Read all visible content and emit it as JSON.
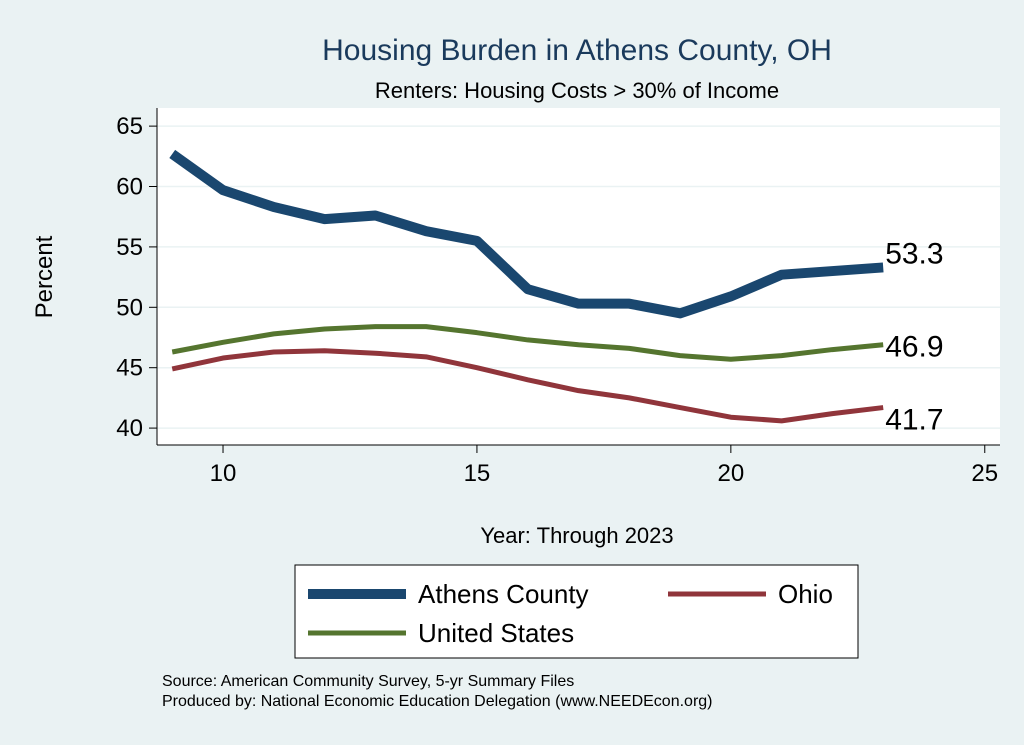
{
  "chart_data": {
    "type": "line",
    "title": "Housing Burden in Athens County, OH",
    "subtitle": "Renters: Housing Costs > 30% of Income",
    "xlabel": "Year: Through 2023",
    "ylabel": "Percent",
    "x": [
      9,
      10,
      11,
      12,
      13,
      14,
      15,
      16,
      17,
      18,
      19,
      20,
      21,
      22,
      23
    ],
    "xticks": [
      10,
      15,
      20,
      25
    ],
    "yticks": [
      40,
      45,
      50,
      55,
      60,
      65
    ],
    "xlim": [
      8.7,
      25.3
    ],
    "ylim": [
      38.6,
      66.5
    ],
    "grid": "horizontal",
    "legend_position": "bottom",
    "series": [
      {
        "name": "Athens County",
        "color": "#1a476f",
        "values": [
          62.7,
          59.7,
          58.3,
          57.3,
          57.6,
          56.3,
          55.5,
          51.5,
          50.3,
          50.3,
          49.5,
          50.9,
          52.7,
          53.0,
          53.3
        ],
        "end_label": "53.3"
      },
      {
        "name": "Ohio",
        "color": "#90353b",
        "values": [
          44.9,
          45.8,
          46.3,
          46.4,
          46.2,
          45.9,
          45.0,
          44.0,
          43.1,
          42.5,
          41.7,
          40.9,
          40.6,
          41.2,
          41.7
        ],
        "end_label": "41.7"
      },
      {
        "name": "United States",
        "color": "#55752f",
        "values": [
          46.3,
          47.1,
          47.8,
          48.2,
          48.4,
          48.4,
          47.9,
          47.3,
          46.9,
          46.6,
          46.0,
          45.7,
          46.0,
          46.5,
          46.9
        ],
        "end_label": "46.9"
      }
    ]
  },
  "notes": {
    "source": "Source: American Community Survey, 5-yr Summary Files",
    "produced": "Produced by: National Economic Education Delegation (www.NEEDEcon.org)"
  }
}
